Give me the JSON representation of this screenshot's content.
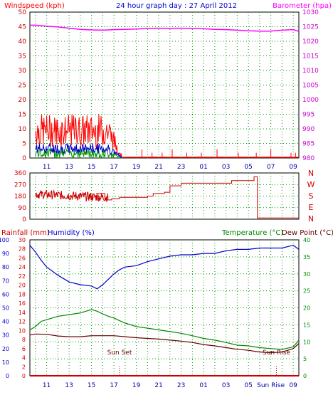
{
  "header": {
    "title": "24 hour graph day : 27 April 2012",
    "windspeed_label": "Windspeed (kph)",
    "barometer_label": "Barometer (hpa)",
    "rainfall_label": "Rainfall (mm)",
    "humidity_label": "Humidity (%)",
    "temperature_label": "Temperature (°C)",
    "dewpoint_label": "Dew Point (°C)",
    "sunset_label": "Sun Set",
    "sunrise_label": "Sun Rise"
  },
  "colors": {
    "wind_gust": "#ff0000",
    "wind_avg": "#0000cc",
    "wind_min": "#009900",
    "barometer": "#ff00ff",
    "direction": "#cc0000",
    "humidity": "#0000cc",
    "temperature": "#008800",
    "dewpoint": "#660000",
    "rainfall": "#cc0000",
    "grid": "#009900"
  },
  "chart_data": [
    {
      "type": "line",
      "name": "wind-barometer",
      "x_ticks": [
        "11",
        "13",
        "15",
        "17",
        "19",
        "21",
        "23",
        "01",
        "03",
        "05",
        "07",
        "09"
      ],
      "left_axis": {
        "label": "Windspeed (kph)",
        "ticks": [
          0,
          5,
          10,
          15,
          20,
          25,
          30,
          35,
          40,
          45,
          50
        ],
        "ylim": [
          0,
          50
        ]
      },
      "right_axis": {
        "label": "Barometer (hpa)",
        "ticks": [
          980,
          985,
          990,
          995,
          1000,
          1005,
          1010,
          1015,
          1020,
          1025,
          1030
        ],
        "ylim": [
          980,
          1030
        ]
      },
      "barometer": {
        "hours": [
          9.5,
          10,
          11,
          12,
          13,
          14,
          15,
          16,
          17,
          18,
          19,
          20,
          21,
          22,
          23,
          24,
          25,
          26,
          27,
          28,
          29,
          30,
          31,
          32,
          33,
          33.5
        ],
        "values": [
          1025.5,
          1025.5,
          1025.2,
          1024.9,
          1024.5,
          1024.1,
          1023.9,
          1023.8,
          1024.0,
          1024.1,
          1024.2,
          1024.4,
          1024.5,
          1024.4,
          1024.5,
          1024.4,
          1024.3,
          1024.1,
          1024.0,
          1023.8,
          1023.6,
          1023.5,
          1023.5,
          1023.8,
          1024.0,
          1023.4
        ]
      },
      "wind_gust_peak": 15,
      "wind_avg_peak": 5,
      "grid": true
    },
    {
      "type": "line",
      "name": "wind-direction",
      "left_axis": {
        "ticks": [
          0,
          90,
          180,
          270,
          360
        ],
        "ylim": [
          0,
          360
        ]
      },
      "right_axis": {
        "ticks": [
          "N",
          "W",
          "S",
          "E",
          "N"
        ]
      },
      "direction": {
        "hours": [
          10,
          11,
          12,
          13,
          14,
          15,
          15.4,
          16.2,
          16.8,
          17.5,
          20,
          20.5,
          21.5,
          22,
          23,
          27.5,
          29.5,
          29.8,
          33.5
        ],
        "values": [
          230,
          200,
          180,
          200,
          180,
          150,
          200,
          150,
          160,
          170,
          180,
          200,
          210,
          260,
          280,
          300,
          330,
          10,
          10
        ]
      },
      "grid": true
    },
    {
      "type": "line",
      "name": "temp-humidity",
      "x_ticks": [
        "11",
        "13",
        "15",
        "17",
        "19",
        "21",
        "23",
        "01",
        "03",
        "05",
        "Sun Rise",
        "09"
      ],
      "humidity_axis": {
        "label": "Humidity (%)",
        "ticks": [
          0,
          10,
          20,
          30,
          40,
          50,
          60,
          70,
          80,
          90,
          100
        ],
        "ylim": [
          0,
          100
        ]
      },
      "rain_axis": {
        "label": "Rainfall (mm)",
        "ticks": [
          0,
          2,
          4,
          6,
          8,
          10,
          12,
          14,
          16,
          18,
          20,
          22,
          24,
          26,
          28,
          30
        ],
        "ylim": [
          0,
          30
        ]
      },
      "temp_axis": {
        "label": "Temperature (°C)",
        "ticks": [
          0,
          5,
          10,
          15,
          20,
          25,
          30,
          35,
          40
        ],
        "ylim": [
          0,
          40
        ]
      },
      "humidity": {
        "hours": [
          9.5,
          10,
          10.5,
          11,
          12,
          13,
          14,
          15,
          15.5,
          16,
          16.5,
          17,
          17.5,
          18,
          19,
          20,
          21,
          22,
          23,
          24,
          25,
          26,
          27,
          28,
          29,
          30,
          31,
          32,
          33,
          33.5
        ],
        "values": [
          96,
          91,
          85,
          80,
          74,
          69,
          67,
          66,
          64,
          67,
          71,
          75,
          78,
          80,
          81,
          84,
          86,
          88,
          89,
          89,
          90,
          90,
          92,
          93,
          93,
          94,
          94,
          94,
          96,
          93
        ]
      },
      "temperature": {
        "hours": [
          9.5,
          10,
          10.5,
          11,
          12,
          13,
          14,
          15,
          15.5,
          16,
          16.5,
          17,
          17.5,
          18,
          19,
          20,
          21,
          22,
          23,
          24,
          25,
          26,
          27,
          28,
          29,
          30,
          31,
          32,
          33,
          33.5
        ],
        "values": [
          13.5,
          14.5,
          16,
          16.5,
          17.5,
          18,
          18.5,
          19.5,
          19,
          18.2,
          17.5,
          17,
          16.2,
          15.5,
          14.5,
          14,
          13.5,
          13,
          12.5,
          11.8,
          11,
          10.5,
          9.8,
          9,
          8.8,
          8.3,
          8,
          7.8,
          8.5,
          10.5
        ]
      },
      "dewpoint": {
        "hours": [
          9.5,
          10,
          11,
          12,
          13,
          14,
          15,
          16,
          17,
          18,
          19,
          20,
          21,
          22,
          23,
          24,
          25,
          26,
          27,
          28,
          29,
          30,
          31,
          32,
          33,
          33.5
        ],
        "values": [
          12,
          12.3,
          12.2,
          11.7,
          11.5,
          11.5,
          11.8,
          11.8,
          11.8,
          11.5,
          11.2,
          11,
          10.8,
          10.5,
          10.2,
          9.8,
          9.2,
          8.8,
          8.3,
          7.8,
          7.5,
          7,
          6.8,
          7,
          8,
          9.5
        ]
      },
      "rainfall": {
        "hours": [
          9.5,
          33.5
        ],
        "values": [
          0,
          0
        ]
      },
      "sunset_hour": 17.5,
      "sunrise_hour": 31.5,
      "grid": true
    }
  ]
}
